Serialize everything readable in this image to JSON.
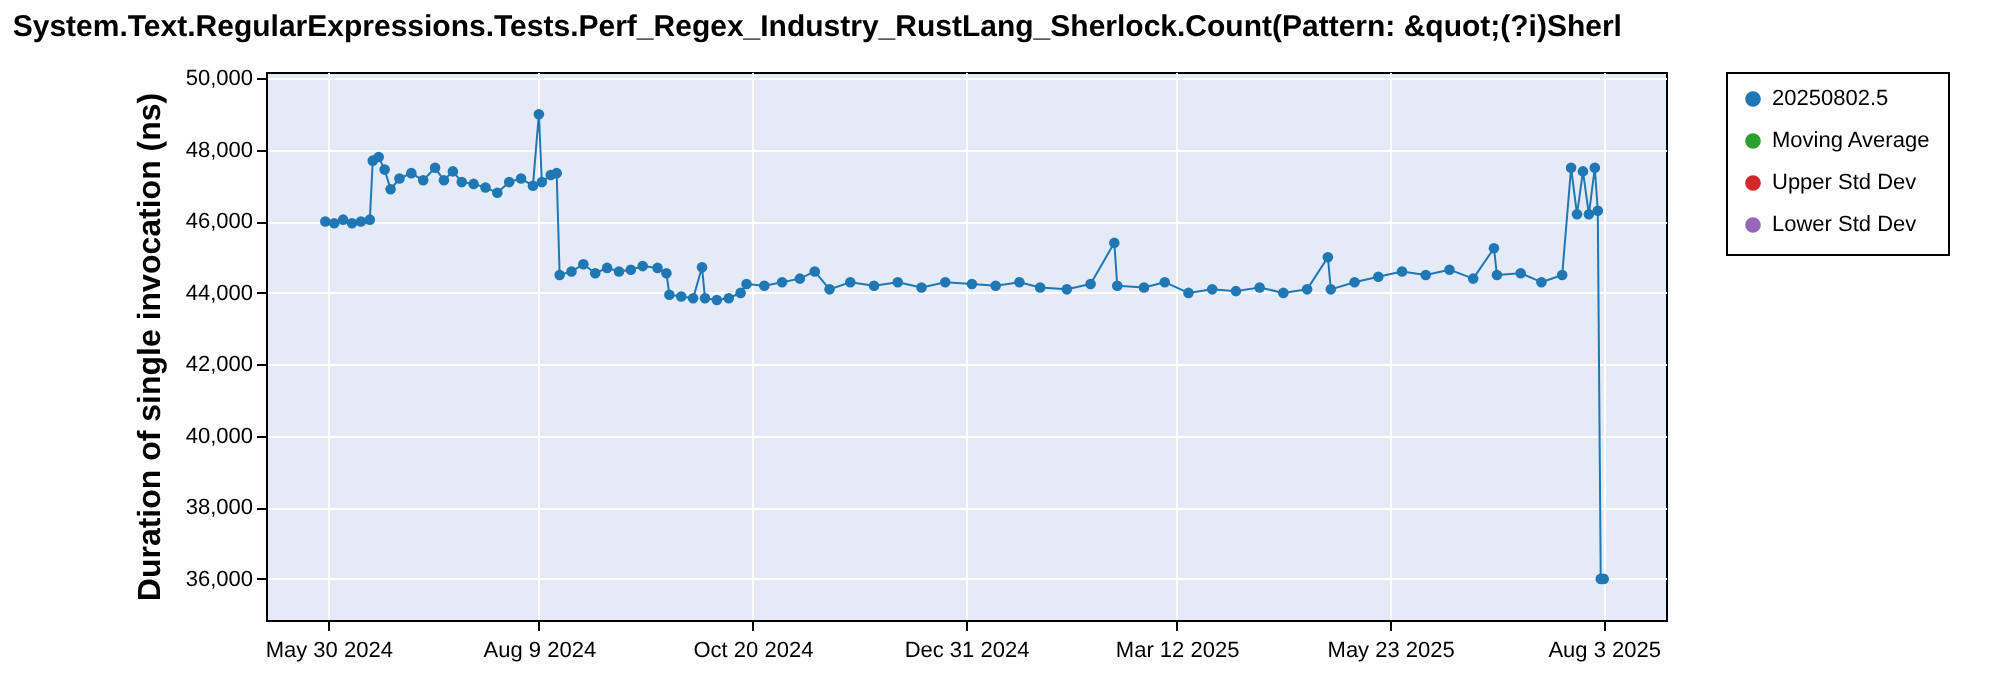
{
  "chart_data": {
    "type": "line",
    "title": "System.Text.RegularExpressions.Tests.Perf_Regex_Industry_RustLang_Sherlock.Count(Pattern: &quot;(?i)Sherl",
    "ylabel": "Duration of single invocation (ns)",
    "x": [
      "2024-05-29",
      "2024-06-01",
      "2024-06-04",
      "2024-06-07",
      "2024-06-10",
      "2024-06-13",
      "2024-06-14",
      "2024-06-16",
      "2024-06-18",
      "2024-06-20",
      "2024-06-23",
      "2024-06-27",
      "2024-07-01",
      "2024-07-05",
      "2024-07-08",
      "2024-07-11",
      "2024-07-14",
      "2024-07-18",
      "2024-07-22",
      "2024-07-26",
      "2024-07-30",
      "2024-08-03",
      "2024-08-07",
      "2024-08-09",
      "2024-08-10",
      "2024-08-13",
      "2024-08-15",
      "2024-08-16",
      "2024-08-20",
      "2024-08-24",
      "2024-08-28",
      "2024-09-01",
      "2024-09-05",
      "2024-09-09",
      "2024-09-13",
      "2024-09-18",
      "2024-09-21",
      "2024-09-22",
      "2024-09-26",
      "2024-09-30",
      "2024-10-03",
      "2024-10-04",
      "2024-10-08",
      "2024-10-12",
      "2024-10-16",
      "2024-10-18",
      "2024-10-24",
      "2024-10-30",
      "2024-11-05",
      "2024-11-10",
      "2024-11-15",
      "2024-11-22",
      "2024-11-30",
      "2024-12-08",
      "2024-12-16",
      "2024-12-24",
      "2025-01-02",
      "2025-01-10",
      "2025-01-18",
      "2025-01-25",
      "2025-02-03",
      "2025-02-11",
      "2025-02-19",
      "2025-02-20",
      "2025-03-01",
      "2025-03-08",
      "2025-03-16",
      "2025-03-24",
      "2025-04-01",
      "2025-04-09",
      "2025-04-17",
      "2025-04-25",
      "2025-05-02",
      "2025-05-03",
      "2025-05-11",
      "2025-05-19",
      "2025-05-27",
      "2025-06-04",
      "2025-06-12",
      "2025-06-20",
      "2025-06-27",
      "2025-06-28",
      "2025-07-06",
      "2025-07-13",
      "2025-07-20",
      "2025-07-23",
      "2025-07-25",
      "2025-07-27",
      "2025-07-29",
      "2025-07-31",
      "2025-08-01",
      "2025-08-02",
      "2025-08-03"
    ],
    "series": [
      {
        "name": "20250802.5",
        "color": "#1f77b4",
        "values": [
          46000,
          45950,
          46050,
          45950,
          46000,
          46050,
          47700,
          47800,
          47450,
          46900,
          47200,
          47350,
          47150,
          47500,
          47150,
          47400,
          47100,
          47050,
          46950,
          46800,
          47100,
          47200,
          47000,
          49000,
          47100,
          47300,
          47350,
          44500,
          44600,
          44800,
          44550,
          44700,
          44600,
          44650,
          44750,
          44700,
          44550,
          43950,
          43900,
          43850,
          44720,
          43850,
          43800,
          43850,
          44000,
          44250,
          44200,
          44300,
          44400,
          44600,
          44100,
          44300,
          44200,
          44300,
          44150,
          44300,
          44250,
          44200,
          44300,
          44150,
          44100,
          44250,
          45400,
          44200,
          44150,
          44300,
          44000,
          44100,
          44050,
          44150,
          44000,
          44100,
          45000,
          44100,
          44300,
          44450,
          44600,
          44500,
          44650,
          44400,
          45250,
          44500,
          44550,
          44300,
          44500,
          47500,
          46200,
          47400,
          46200,
          47500,
          46300,
          36000,
          36000
        ]
      },
      {
        "name": "Moving Average",
        "color": "#2ca02c",
        "values": [
          null,
          null,
          null,
          null,
          null,
          null,
          null,
          null,
          null,
          null,
          null,
          null,
          null,
          null,
          null,
          null,
          null,
          null,
          null,
          null,
          null,
          null,
          null,
          null,
          null,
          null,
          null,
          null,
          null,
          null,
          null,
          null,
          null,
          null,
          null,
          null,
          null,
          null,
          null,
          null,
          null,
          null,
          null,
          null,
          null,
          null,
          null,
          null,
          null,
          null,
          null,
          null,
          null,
          null,
          null,
          null,
          null,
          null,
          null,
          null,
          null,
          null,
          null,
          null,
          null,
          null,
          null,
          null,
          null,
          null,
          null,
          null,
          null,
          null,
          null,
          null,
          null,
          null,
          null,
          null,
          null,
          null,
          null,
          null,
          null,
          null,
          null,
          null,
          null,
          null,
          null,
          null,
          null
        ]
      },
      {
        "name": "Upper Std Dev",
        "color": "#d62728",
        "values": [
          null,
          null,
          null,
          null,
          null,
          null,
          null,
          null,
          null,
          null,
          null,
          null,
          null,
          null,
          null,
          null,
          null,
          null,
          null,
          null,
          null,
          null,
          null,
          null,
          null,
          null,
          null,
          null,
          null,
          null,
          null,
          null,
          null,
          null,
          null,
          null,
          null,
          null,
          null,
          null,
          null,
          null,
          null,
          null,
          null,
          null,
          null,
          null,
          null,
          null,
          null,
          null,
          null,
          null,
          null,
          null,
          null,
          null,
          null,
          null,
          null,
          null,
          null,
          null,
          null,
          null,
          null,
          null,
          null,
          null,
          null,
          null,
          null,
          null,
          null,
          null,
          null,
          null,
          null,
          null,
          null,
          null,
          null,
          null,
          null,
          null,
          null,
          null,
          null,
          null,
          null,
          null,
          null
        ]
      },
      {
        "name": "Lower Std Dev",
        "color": "#9467bd",
        "values": [
          null,
          null,
          null,
          null,
          null,
          null,
          null,
          null,
          null,
          null,
          null,
          null,
          null,
          null,
          null,
          null,
          null,
          null,
          null,
          null,
          null,
          null,
          null,
          null,
          null,
          null,
          null,
          null,
          null,
          null,
          null,
          null,
          null,
          null,
          null,
          null,
          null,
          null,
          null,
          null,
          null,
          null,
          null,
          null,
          null,
          null,
          null,
          null,
          null,
          null,
          null,
          null,
          null,
          null,
          null,
          null,
          null,
          null,
          null,
          null,
          null,
          null,
          null,
          null,
          null,
          null,
          null,
          null,
          null,
          null,
          null,
          null,
          null,
          null,
          null,
          null,
          null,
          null,
          null,
          null,
          null,
          null,
          null,
          null,
          null,
          null,
          null,
          null,
          null,
          null,
          null,
          null,
          null
        ]
      }
    ],
    "xlim": [
      "2024-05-09",
      "2025-08-24"
    ],
    "xticks": [
      {
        "value": "2024-05-30",
        "label": "May 30 2024"
      },
      {
        "value": "2024-08-09",
        "label": "Aug 9 2024"
      },
      {
        "value": "2024-10-20",
        "label": "Oct 20 2024"
      },
      {
        "value": "2024-12-31",
        "label": "Dec 31 2024"
      },
      {
        "value": "2025-03-12",
        "label": "Mar 12 2025"
      },
      {
        "value": "2025-05-23",
        "label": "May 23 2025"
      },
      {
        "value": "2025-08-03",
        "label": "Aug 3 2025"
      }
    ],
    "ylim": [
      34850,
      50180
    ],
    "yticks": [
      {
        "value": 36000,
        "label": "36,000"
      },
      {
        "value": 38000,
        "label": "38,000"
      },
      {
        "value": 40000,
        "label": "40,000"
      },
      {
        "value": 42000,
        "label": "42,000"
      },
      {
        "value": 44000,
        "label": "44,000"
      },
      {
        "value": 46000,
        "label": "46,000"
      },
      {
        "value": 48000,
        "label": "48,000"
      },
      {
        "value": 50000,
        "label": "50,000"
      }
    ],
    "grid": true,
    "legend": "right",
    "marker": "circle",
    "line_style": "solid"
  }
}
